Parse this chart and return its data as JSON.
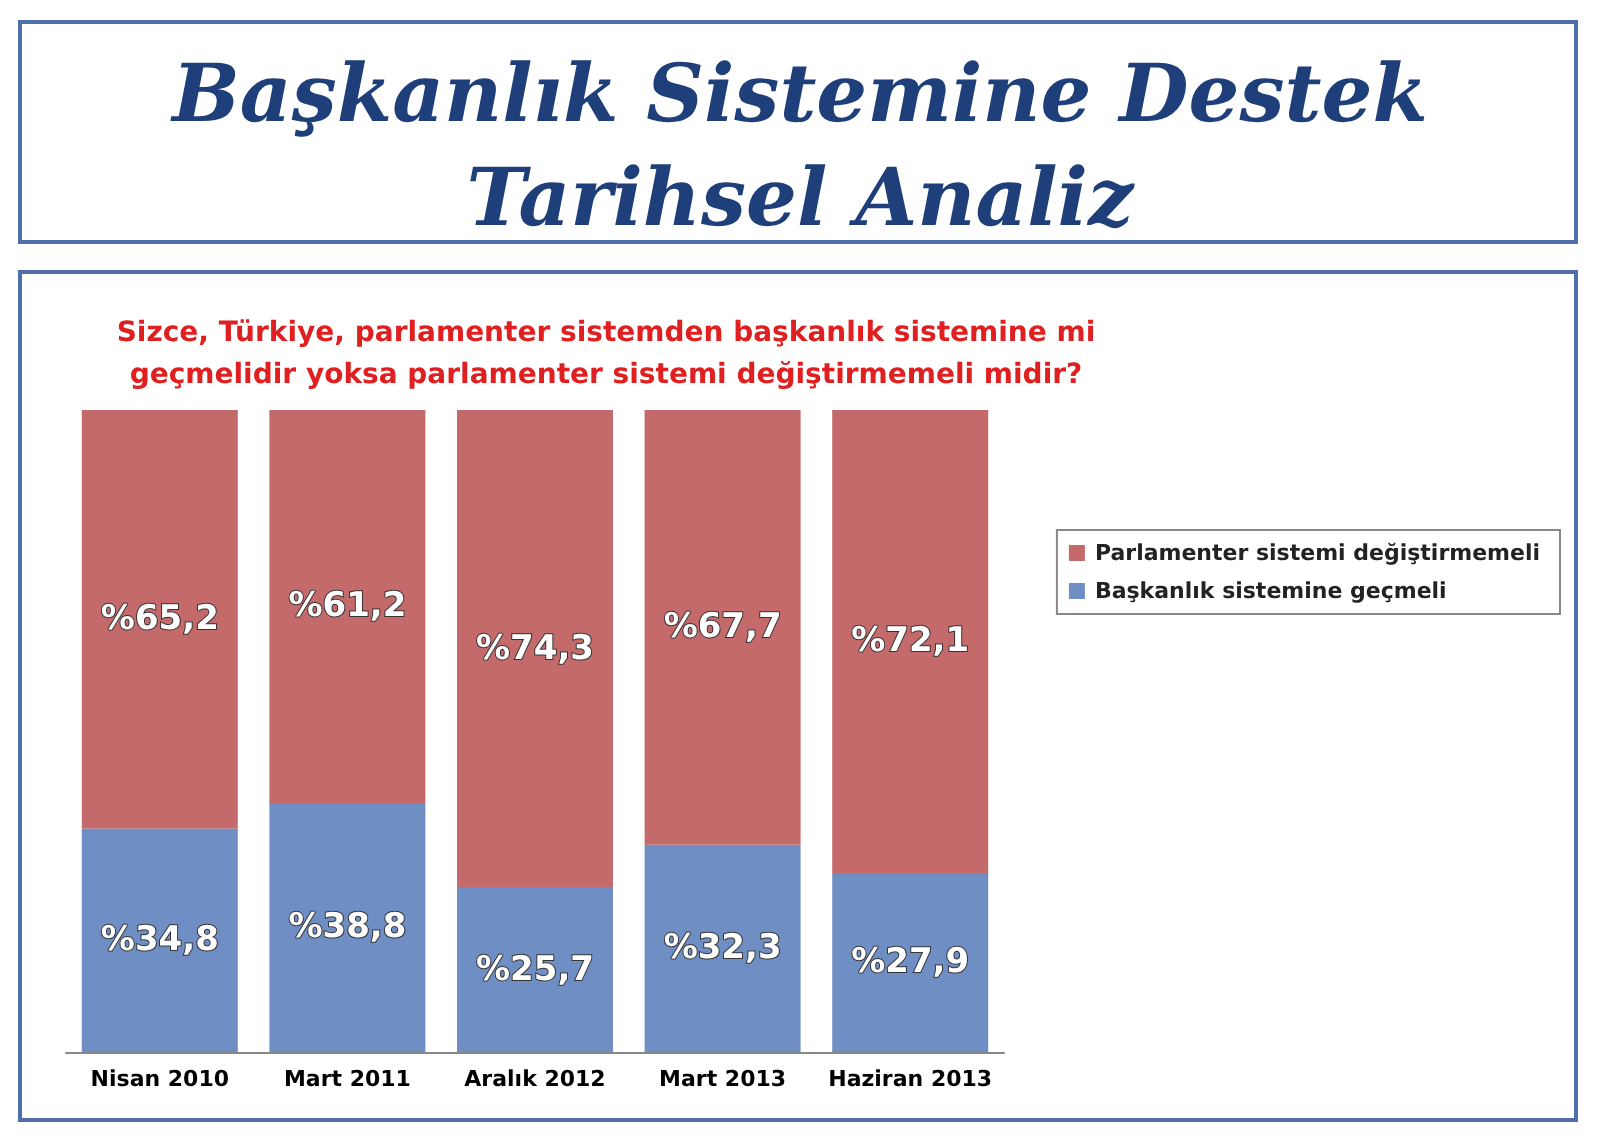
{
  "chart_data": {
    "type": "bar",
    "title": "Başkanlık Sistemine Destek\nTarihsel Analiz",
    "subtitle": "Sizce, Türkiye, parlamenter sistemden başkanlık sistemine mi\ngeçmelidir yoksa parlamenter sistemi değiştirmemeli midir?",
    "categories": [
      "Nisan 2010",
      "Mart 2011",
      "Aralık 2012",
      "Mart 2013",
      "Haziran 2013"
    ],
    "stacked": true,
    "legend": "right",
    "series": [
      {
        "name": "Başkanlık sistemine geçmeli",
        "color": "#6f8fc4",
        "values": [
          34.8,
          38.8,
          25.7,
          32.3,
          27.9
        ],
        "value_labels": [
          "%34,8",
          "%38,8",
          "%25,7",
          "%32,3",
          "%27,9"
        ]
      },
      {
        "name": "Parlamenter sistemi değiştirmemeli",
        "color": "#c56a6a",
        "values": [
          65.2,
          61.2,
          74.3,
          67.7,
          72.1
        ],
        "value_labels": [
          "%65,2",
          "%61,2",
          "%74,3",
          "%67,7",
          "%72,1"
        ]
      }
    ]
  }
}
